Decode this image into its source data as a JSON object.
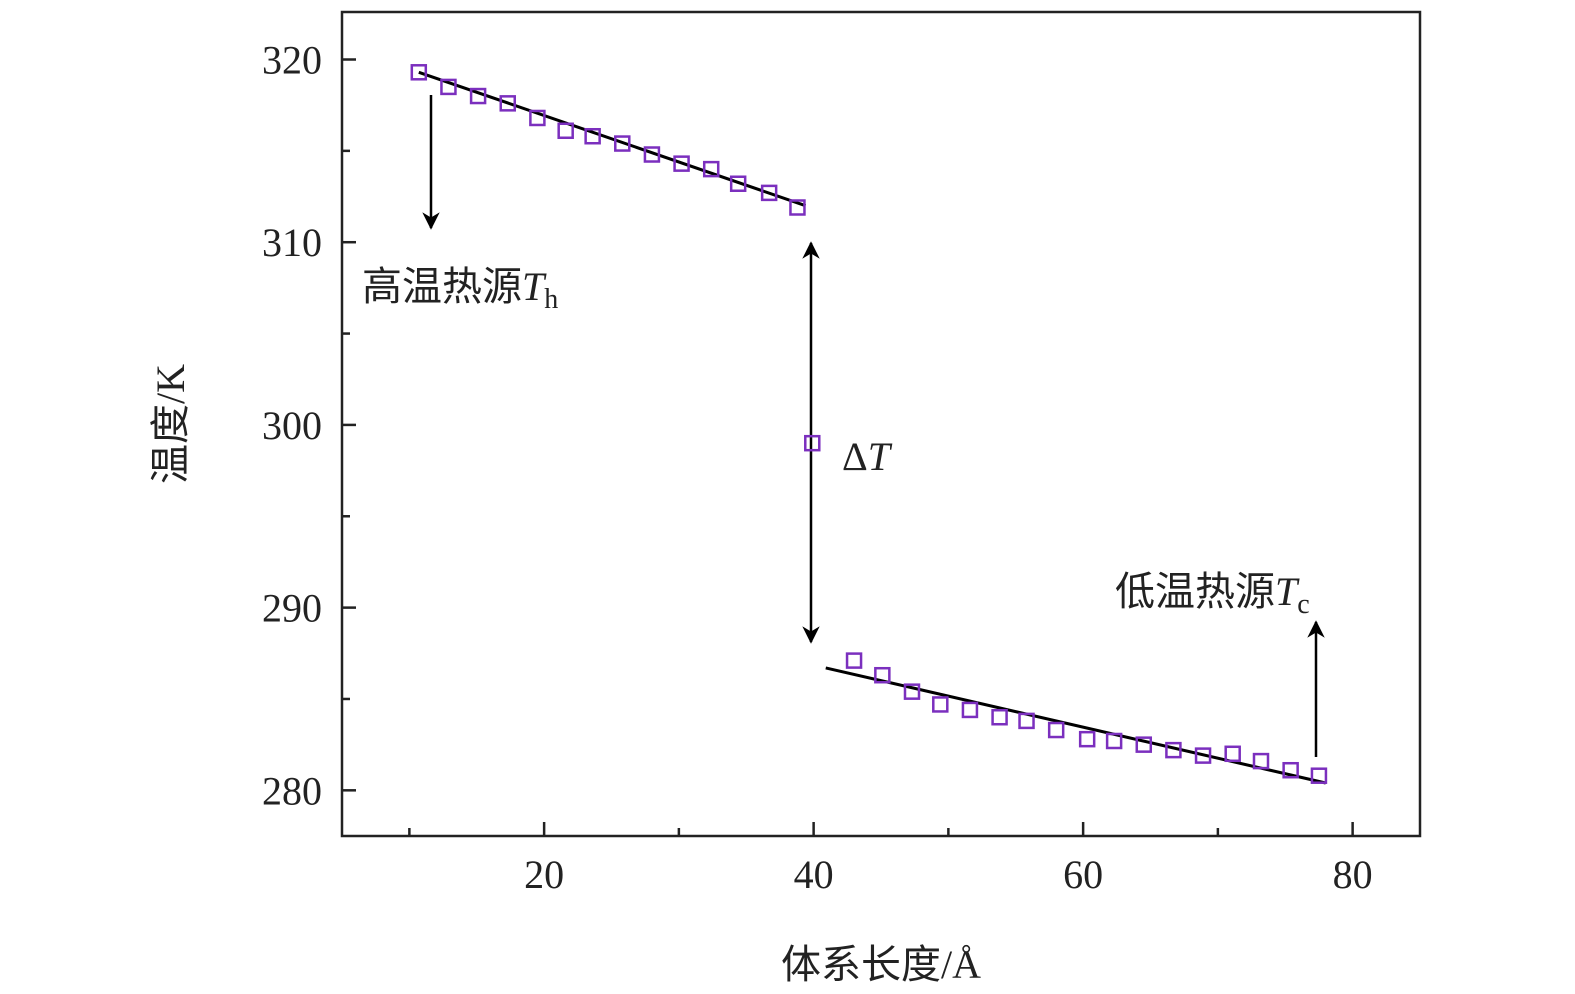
{
  "chart_data": {
    "type": "scatter",
    "xlabel": "体系长度/Å",
    "ylabel": "温度/K",
    "xlim": [
      5,
      85
    ],
    "ylim": [
      277.5,
      322.6
    ],
    "xticks": [
      20,
      40,
      60,
      80
    ],
    "yticks": [
      280,
      290,
      300,
      310,
      320
    ],
    "xminorticks": [
      10,
      30,
      50,
      70
    ],
    "yminorticks": [
      285,
      295,
      305,
      315
    ],
    "series": [
      {
        "color": "#7b2fbe",
        "x": [
          10.7,
          12.9,
          15.1,
          17.3,
          19.5,
          21.6,
          23.6,
          25.8,
          28.0,
          30.2,
          32.4,
          34.4,
          36.7,
          38.8,
          39.9,
          43.0,
          45.1,
          47.3,
          49.4,
          51.6,
          53.8,
          55.8,
          58.0,
          60.3,
          62.3,
          64.5,
          66.7,
          68.9,
          71.1,
          73.2,
          75.4,
          77.5
        ],
        "values": [
          319.3,
          318.5,
          318.0,
          317.6,
          316.8,
          316.1,
          315.8,
          315.4,
          314.8,
          314.3,
          314.0,
          313.2,
          312.7,
          311.9,
          299.0,
          287.1,
          286.3,
          285.4,
          284.7,
          284.4,
          284.0,
          283.8,
          283.3,
          282.8,
          282.7,
          282.5,
          282.2,
          281.9,
          282.0,
          281.6,
          281.1,
          280.8
        ]
      }
    ],
    "fits": [
      {
        "color": "#000000",
        "x": [
          10.7,
          39.4
        ],
        "values": [
          319.3,
          312.0
        ]
      },
      {
        "color": "#000000",
        "x": [
          40.9,
          78.0
        ],
        "values": [
          286.7,
          280.4
        ]
      }
    ],
    "annotations": [
      {
        "prefix": "高温热源",
        "var": "T",
        "sub": "h"
      },
      {
        "prefix": "Δ",
        "var": "T"
      },
      {
        "prefix": "低温热源",
        "var": "T",
        "sub": "c"
      }
    ]
  }
}
